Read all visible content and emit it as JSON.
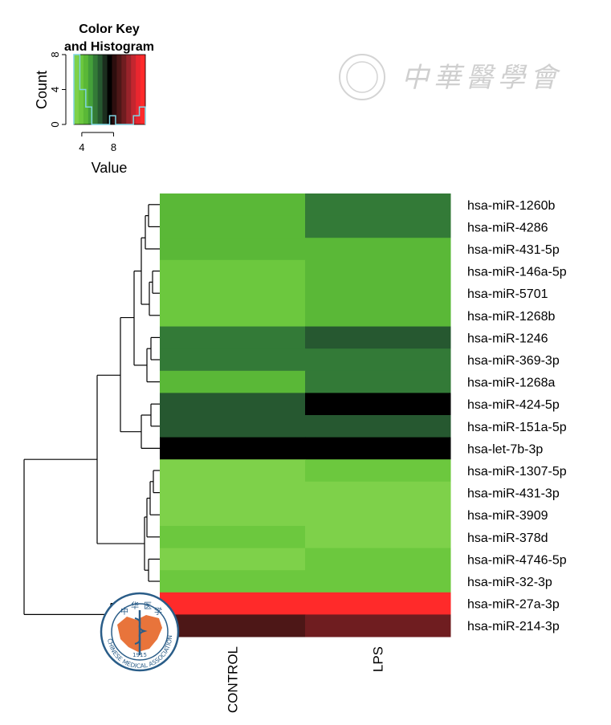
{
  "chart_data": {
    "type": "heatmap",
    "columns": [
      "CONTROL",
      "LPS"
    ],
    "rows": [
      "hsa-miR-1260b",
      "hsa-miR-4286",
      "hsa-miR-431-5p",
      "hsa-miR-146a-5p",
      "hsa-miR-5701",
      "hsa-miR-1268b",
      "hsa-miR-1246",
      "hsa-miR-369-3p",
      "hsa-miR-1268a",
      "hsa-miR-424-5p",
      "hsa-miR-151a-5p",
      "hsa-let-7b-3p",
      "hsa-miR-1307-5p",
      "hsa-miR-431-3p",
      "hsa-miR-3909",
      "hsa-miR-378d",
      "hsa-miR-4746-5p",
      "hsa-miR-32-3p",
      "hsa-miR-27a-3p",
      "hsa-miR-214-3p"
    ],
    "values": [
      [
        4.6,
        5.6
      ],
      [
        4.6,
        5.6
      ],
      [
        4.6,
        4.6
      ],
      [
        3.8,
        4.6
      ],
      [
        3.8,
        4.6
      ],
      [
        3.8,
        4.6
      ],
      [
        5.6,
        6.4
      ],
      [
        5.6,
        5.6
      ],
      [
        4.6,
        5.6
      ],
      [
        6.4,
        7.2
      ],
      [
        6.4,
        6.4
      ],
      [
        7.2,
        7.2
      ],
      [
        3.4,
        3.8
      ],
      [
        3.4,
        3.4
      ],
      [
        3.4,
        3.4
      ],
      [
        3.8,
        3.4
      ],
      [
        3.2,
        3.8
      ],
      [
        3.8,
        3.8
      ],
      [
        11.8,
        11.8
      ],
      [
        8.4,
        9.2
      ]
    ],
    "row_dendrogram": true,
    "color_key": {
      "title_line1": "Color Key",
      "title_line2": "and Histogram",
      "xlabel": "Value",
      "ylabel": "Count",
      "xticks": [
        "4",
        "8"
      ],
      "yticks": [
        "0",
        "4",
        "8"
      ],
      "value_range": [
        3,
        12
      ],
      "count_max": 8,
      "colors": [
        "#7ed14a",
        "#6cc83e",
        "#5ab837",
        "#44a03a",
        "#337a37",
        "#265830",
        "#1b2d1e",
        "#000000",
        "#2d0e0e",
        "#4d1717",
        "#6f1d20",
        "#98232a",
        "#c3262f",
        "#e9262f",
        "#ff2a2a"
      ],
      "histogram_counts": [
        8,
        4,
        2,
        0,
        0,
        0,
        1,
        0,
        0,
        0,
        1,
        2
      ]
    },
    "color_scale": {
      "low": "#7dd14a",
      "mid": "#000000",
      "high": "#ee2630"
    }
  },
  "watermark": {
    "text": "中華醫學會",
    "seal_ring_text": "CHINESE MEDICAL ASSOCIATION",
    "seal_top": [
      "中",
      "华",
      "医",
      "学"
    ],
    "seal_year": "1915"
  }
}
